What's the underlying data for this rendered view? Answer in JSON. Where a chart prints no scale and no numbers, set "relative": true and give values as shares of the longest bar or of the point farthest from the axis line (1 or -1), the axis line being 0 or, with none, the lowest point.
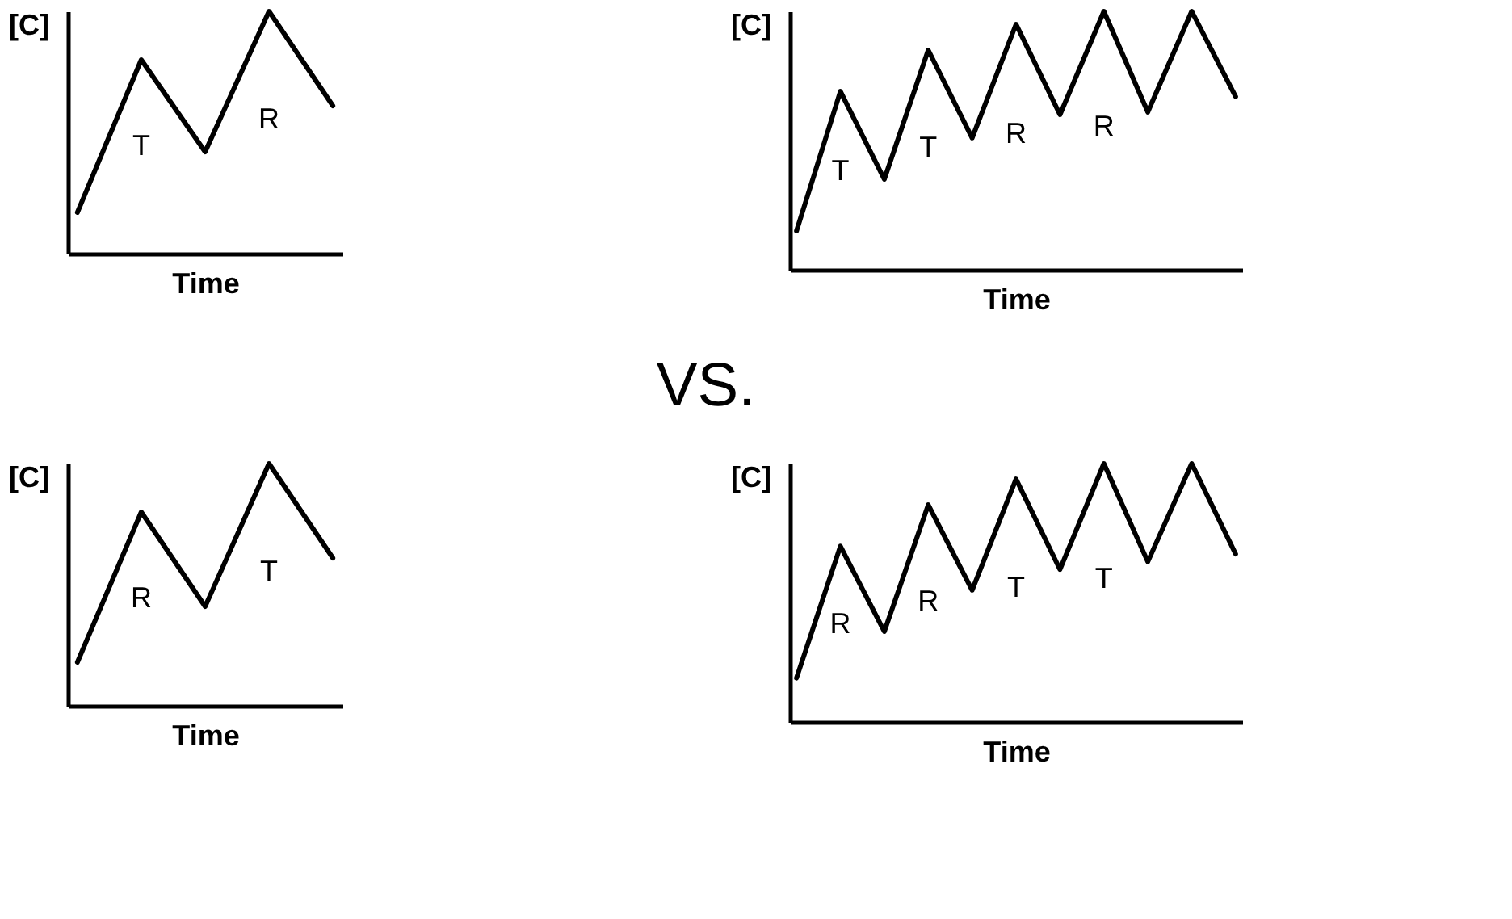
{
  "chart_data": [
    {
      "type": "line",
      "relative": true,
      "xlabel": "Time",
      "ylabel": "[C]",
      "tick_labels": false,
      "categories": [
        null,
        null,
        null,
        null,
        null
      ],
      "series": [
        {
          "color": "#000000",
          "values": [
            0.17,
            0.8,
            0.42,
            1,
            0.61
          ]
        }
      ],
      "annotations": [
        "T",
        "R"
      ]
    },
    {
      "type": "line",
      "relative": true,
      "xlabel": "Time",
      "ylabel": "[C]",
      "tick_labels": false,
      "categories": [
        null,
        null,
        null,
        null,
        null,
        null,
        null,
        null,
        null,
        null,
        null
      ],
      "series": [
        {
          "color": "#000000",
          "values": [
            0.15,
            0.69,
            0.35,
            0.85,
            0.51,
            0.95,
            0.6,
            1,
            0.61,
            1,
            0.67
          ]
        }
      ],
      "annotations": [
        "T",
        "T",
        "R",
        "R"
      ]
    },
    {
      "type": "other",
      "annotations": [
        "VS."
      ]
    },
    {
      "type": "line",
      "relative": true,
      "xlabel": "Time",
      "ylabel": "[C]",
      "tick_labels": false,
      "categories": [
        null,
        null,
        null,
        null,
        null
      ],
      "series": [
        {
          "color": "#000000",
          "values": [
            0.18,
            0.8,
            0.41,
            1,
            0.61
          ]
        }
      ],
      "annotations": [
        "R",
        "T"
      ]
    },
    {
      "type": "line",
      "relative": true,
      "xlabel": "Time",
      "ylabel": "[C]",
      "tick_labels": false,
      "categories": [
        null,
        null,
        null,
        null,
        null,
        null,
        null,
        null,
        null,
        null,
        null
      ],
      "series": [
        {
          "color": "#000000",
          "values": [
            0.17,
            0.68,
            0.35,
            0.84,
            0.51,
            0.94,
            0.59,
            1,
            0.62,
            1,
            0.65
          ]
        }
      ],
      "annotations": [
        "R",
        "R",
        "T",
        "T"
      ]
    }
  ]
}
